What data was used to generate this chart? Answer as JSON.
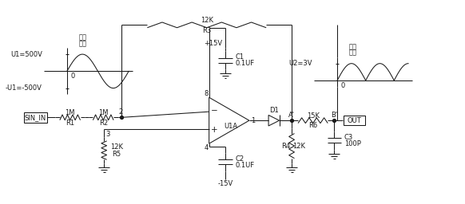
{
  "bg_color": "#ffffff",
  "line_color": "#1a1a1a",
  "text_color": "#1a1a1a",
  "font_size": 6.5,
  "components": {
    "R1": "1M",
    "R2": "1M",
    "R3": "12K",
    "R4": "12K",
    "R5": "12K",
    "R6": "15K",
    "C1_label": "C1",
    "C1_val": "0.1UF",
    "C2_label": "C2",
    "C2_val": "0.1UF",
    "C3_label": "C3",
    "C3_val": "100P",
    "V_pos": "+15V",
    "V_neg": "-15V",
    "opamp": "U1A",
    "diode": "D1",
    "sin_in": "SIN_IN",
    "out": "OUT",
    "node_a": "A'",
    "node_b": "B'",
    "pin2": "2",
    "pin3": "3",
    "pin8": "8",
    "pin4": "4",
    "pin1": "1"
  },
  "input_wave": {
    "title1": "输入",
    "title2": "电压",
    "u1": "U1=500V",
    "u1n": "-U1=-500V",
    "zero": "0"
  },
  "output_wave": {
    "title1": "输出",
    "title2": "电压",
    "u2": "U2=3V",
    "zero": "0"
  }
}
